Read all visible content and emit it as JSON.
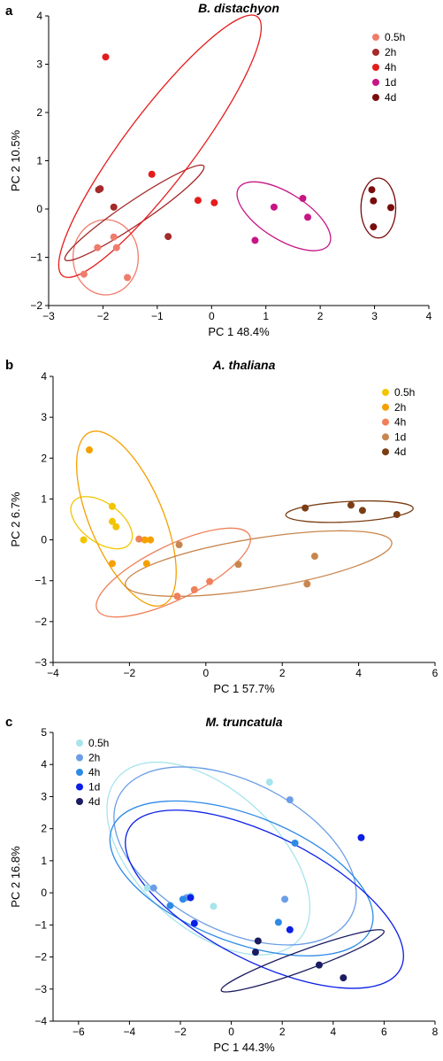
{
  "chart_data": [
    {
      "type": "scatter",
      "panel": "a",
      "title": "B. distachyon",
      "xlabel": "PC 1 48.4%",
      "ylabel": "PC 2 10.5%",
      "xlim": [
        -3,
        4
      ],
      "ylim": [
        -2,
        4
      ],
      "xticks": [
        "−3",
        "−2",
        "−1",
        "0",
        "1",
        "2",
        "3",
        "4"
      ],
      "yticks": [
        "−2",
        "−1",
        "0",
        "1",
        "2",
        "3",
        "4"
      ],
      "legend_position": "top-right",
      "series": [
        {
          "name": "0.5h",
          "color": "#f07c6c",
          "points": [
            [
              -1.8,
              -0.58
            ],
            [
              -2.1,
              -0.8
            ],
            [
              -1.75,
              -0.8
            ],
            [
              -2.35,
              -1.35
            ],
            [
              -1.55,
              -1.42
            ]
          ],
          "ellipse": {
            "center": [
              -1.95,
              -1.0
            ],
            "radii": [
              0.6,
              0.78
            ],
            "angle": 0,
            "color": "#f07c6c"
          }
        },
        {
          "name": "2h",
          "color": "#a52a2a",
          "points": [
            [
              -2.05,
              0.42
            ],
            [
              -2.08,
              0.4
            ],
            [
              -1.8,
              0.04
            ],
            [
              -0.8,
              -0.57
            ]
          ],
          "ellipse": {
            "center": [
              -1.42,
              -0.08
            ],
            "radii": [
              1.54,
              0.24
            ],
            "angle": -34,
            "color": "#a52a2a"
          }
        },
        {
          "name": "4h",
          "color": "#e51c1c",
          "points": [
            [
              -1.95,
              3.15
            ],
            [
              -1.1,
              0.72
            ],
            [
              -0.25,
              0.18
            ],
            [
              0.05,
              0.13
            ]
          ],
          "ellipse": {
            "center": [
              -0.95,
              1.3
            ],
            "radii": [
              2.98,
              0.72
            ],
            "angle": -53,
            "color": "#e51c1c"
          }
        },
        {
          "name": "1d",
          "color": "#c71585",
          "points": [
            [
              0.8,
              -0.65
            ],
            [
              1.15,
              0.04
            ],
            [
              1.68,
              0.22
            ],
            [
              1.77,
              -0.17
            ]
          ],
          "ellipse": {
            "center": [
              1.33,
              -0.15
            ],
            "radii": [
              0.98,
              0.48
            ],
            "angle": 32,
            "color": "#c71585"
          }
        },
        {
          "name": "4d",
          "color": "#7a0c0c",
          "points": [
            [
              2.95,
              0.4
            ],
            [
              2.98,
              0.17
            ],
            [
              3.3,
              0.03
            ],
            [
              2.98,
              -0.37
            ]
          ],
          "ellipse": {
            "center": [
              3.07,
              0.02
            ],
            "radii": [
              0.32,
              0.62
            ],
            "angle": 0,
            "color": "#7a0c0c"
          }
        }
      ]
    },
    {
      "type": "scatter",
      "panel": "b",
      "title": "A. thaliana",
      "xlabel": "PC 1 57.7%",
      "ylabel": "PC 2 6.7%",
      "xlim": [
        -4,
        6
      ],
      "ylim": [
        -3,
        4
      ],
      "xticks": [
        "−4",
        "−2",
        "0",
        "2",
        "4",
        "6"
      ],
      "yticks": [
        "−3",
        "−2",
        "−1",
        "0",
        "1",
        "2",
        "3",
        "4"
      ],
      "legend_position": "top-right",
      "series": [
        {
          "name": "0.5h",
          "color": "#f2c500",
          "points": [
            [
              -3.2,
              0.0
            ],
            [
              -2.45,
              0.82
            ],
            [
              -2.45,
              0.45
            ],
            [
              -2.35,
              0.32
            ]
          ],
          "ellipse": {
            "center": [
              -2.73,
              0.42
            ],
            "radii": [
              0.92,
              0.48
            ],
            "angle": 36,
            "color": "#f2c500"
          }
        },
        {
          "name": "2h",
          "color": "#f5a000",
          "points": [
            [
              -3.05,
              2.2
            ],
            [
              -2.45,
              -0.58
            ],
            [
              -1.6,
              0.0
            ],
            [
              -1.45,
              0.0
            ],
            [
              -1.55,
              -0.58
            ]
          ],
          "ellipse": {
            "center": [
              -2.08,
              0.52
            ],
            "radii": [
              2.45,
              0.9
            ],
            "angle": 67,
            "color": "#f5a000"
          }
        },
        {
          "name": "4h",
          "color": "#f0805a",
          "points": [
            [
              -1.75,
              0.02
            ],
            [
              -0.75,
              -1.38
            ],
            [
              -0.3,
              -1.22
            ],
            [
              0.1,
              -1.02
            ]
          ],
          "ellipse": {
            "center": [
              -0.85,
              -0.8
            ],
            "radii": [
              2.22,
              0.66
            ],
            "angle": -26,
            "color": "#f0805a"
          }
        },
        {
          "name": "1d",
          "color": "#c8864e",
          "points": [
            [
              -0.7,
              -0.12
            ],
            [
              0.85,
              -0.6
            ],
            [
              2.65,
              -1.08
            ],
            [
              2.85,
              -0.4
            ]
          ],
          "ellipse": {
            "center": [
              1.38,
              -0.58
            ],
            "radii": [
              3.53,
              0.62
            ],
            "angle": -9,
            "color": "#c8864e"
          }
        },
        {
          "name": "4d",
          "color": "#7b3e14",
          "points": [
            [
              2.6,
              0.78
            ],
            [
              3.8,
              0.85
            ],
            [
              4.1,
              0.72
            ],
            [
              5.0,
              0.62
            ]
          ],
          "ellipse": {
            "center": [
              3.76,
              0.69
            ],
            "radii": [
              1.67,
              0.25
            ],
            "angle": -3,
            "color": "#7b3e14"
          }
        }
      ]
    },
    {
      "type": "scatter",
      "panel": "c",
      "title": "M. truncatula",
      "xlabel": "PC 1 44.3%",
      "ylabel": "PC 2 16.8%",
      "xlim": [
        -7,
        8
      ],
      "ylim": [
        -4,
        5
      ],
      "xticks": [
        "−6",
        "−4",
        "−2",
        "0",
        "2",
        "4",
        "6",
        "8"
      ],
      "yticks": [
        "−4",
        "−3",
        "−2",
        "−1",
        "0",
        "1",
        "2",
        "3",
        "4",
        "5"
      ],
      "legend_position": "top-left",
      "series": [
        {
          "name": "0.5h",
          "color": "#a7e4ec",
          "points": [
            [
              1.5,
              3.45
            ],
            [
              -0.7,
              -0.42
            ],
            [
              -1.6,
              -0.1
            ],
            [
              -3.3,
              0.15
            ]
          ],
          "ellipse": {
            "center": [
              -0.9,
              1.07
            ],
            "radii": [
              4.77,
              2.16
            ],
            "angle": 42,
            "color": "#a7e4ec"
          }
        },
        {
          "name": "2h",
          "color": "#6b9ee6",
          "points": [
            [
              2.3,
              2.9
            ],
            [
              -3.05,
              0.15
            ],
            [
              -1.75,
              -0.15
            ],
            [
              2.1,
              -0.2
            ]
          ],
          "ellipse": {
            "center": [
              0.15,
              1.15
            ],
            "radii": [
              5.13,
              2.32
            ],
            "angle": 27,
            "color": "#6b9ee6"
          }
        },
        {
          "name": "4h",
          "color": "#2d8ae6",
          "points": [
            [
              2.5,
              1.55
            ],
            [
              -2.4,
              -0.4
            ],
            [
              -1.9,
              -0.2
            ],
            [
              1.85,
              -0.92
            ]
          ],
          "ellipse": {
            "center": [
              0.4,
              0.45
            ],
            "radii": [
              5.45,
              1.98
            ],
            "angle": 21,
            "color": "#2d8ae6"
          }
        },
        {
          "name": "1d",
          "color": "#0b1ee6",
          "points": [
            [
              5.1,
              1.72
            ],
            [
              -1.6,
              -0.15
            ],
            [
              -1.45,
              -0.95
            ],
            [
              2.3,
              -1.15
            ]
          ],
          "ellipse": {
            "center": [
              1.3,
              -0.2
            ],
            "radii": [
              6.0,
              1.95
            ],
            "angle": 27,
            "color": "#0b1ee6"
          }
        },
        {
          "name": "4d",
          "color": "#1c1c62",
          "points": [
            [
              1.05,
              -1.5
            ],
            [
              0.95,
              -1.85
            ],
            [
              3.45,
              -2.25
            ],
            [
              4.4,
              -2.65
            ]
          ],
          "ellipse": {
            "center": [
              2.8,
              -2.12
            ],
            "radii": [
              3.4,
              0.31
            ],
            "angle": -20,
            "color": "#1c1c62"
          }
        }
      ]
    }
  ]
}
